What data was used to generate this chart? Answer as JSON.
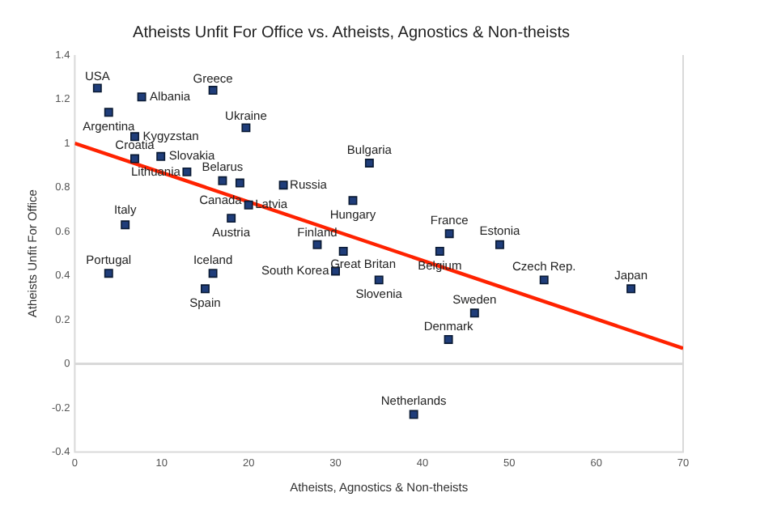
{
  "chart_data": {
    "type": "scatter",
    "title": "Atheists Unfit For Office vs. Atheists, Agnostics & Non-theists",
    "xlabel": "Atheists, Agnostics & Non-theists",
    "ylabel": "Atheists Unfit For Office",
    "xlim": [
      0,
      70
    ],
    "xticks": [
      0,
      10,
      20,
      30,
      40,
      50,
      60,
      70
    ],
    "ylim": [
      -0.4,
      1.4
    ],
    "yticks": [
      -0.4,
      -0.2,
      0,
      0.2,
      0.4,
      0.6,
      0.8,
      1,
      1.2,
      1.4
    ],
    "grid": false,
    "legend": false,
    "marker": "square",
    "series": [
      {
        "color": "#1f3d7a",
        "x": [
          2.6,
          15.9,
          7.7,
          3.9,
          19.7,
          6.9,
          6.9,
          9.9,
          12.9,
          17,
          19,
          20,
          24,
          33.9,
          32,
          18,
          5.8,
          27.9,
          30.9,
          43.1,
          48.9,
          42,
          30,
          35,
          54,
          64,
          46,
          43,
          3.9,
          15.9,
          15,
          39
        ],
        "values": [
          1.25,
          1.24,
          1.21,
          1.14,
          1.07,
          1.03,
          0.93,
          0.94,
          0.87,
          0.83,
          0.82,
          0.72,
          0.81,
          0.91,
          0.74,
          0.66,
          0.63,
          0.54,
          0.51,
          0.59,
          0.54,
          0.51,
          0.42,
          0.38,
          0.38,
          0.34,
          0.23,
          0.11,
          0.41,
          0.41,
          0.34,
          -0.23
        ]
      },
      {
        "type": "line",
        "color": "#ff2200",
        "x": [
          0,
          70
        ],
        "values": [
          1.0,
          0.07
        ],
        "marker": "none"
      }
    ],
    "ref_lines": [
      {
        "axis": "y",
        "value": 0,
        "color": "#d9d9d9"
      }
    ],
    "annotations": [
      {
        "text": "USA",
        "x": 2.6,
        "y": 1.25
      },
      {
        "text": "Greece",
        "x": 15.9,
        "y": 1.24
      },
      {
        "text": "Albania",
        "x": 7.7,
        "y": 1.21
      },
      {
        "text": "Argentina",
        "x": 3.9,
        "y": 1.14
      },
      {
        "text": "Ukraine",
        "x": 19.7,
        "y": 1.07
      },
      {
        "text": "Kygyzstan",
        "x": 6.9,
        "y": 1.03
      },
      {
        "text": "Croatia",
        "x": 6.9,
        "y": 0.93
      },
      {
        "text": "Slovakia",
        "x": 9.9,
        "y": 0.94
      },
      {
        "text": "Lithuania",
        "x": 12.9,
        "y": 0.87
      },
      {
        "text": "Belarus",
        "x": 17,
        "y": 0.83
      },
      {
        "text": "Canada",
        "x": 19,
        "y": 0.82
      },
      {
        "text": "Latvia",
        "x": 20,
        "y": 0.72
      },
      {
        "text": "Russia",
        "x": 24,
        "y": 0.81
      },
      {
        "text": "Bulgaria",
        "x": 33.9,
        "y": 0.91
      },
      {
        "text": "Hungary",
        "x": 32,
        "y": 0.74
      },
      {
        "text": "Austria",
        "x": 18,
        "y": 0.66
      },
      {
        "text": "Italy",
        "x": 5.8,
        "y": 0.63
      },
      {
        "text": "Finland",
        "x": 27.9,
        "y": 0.54
      },
      {
        "text": "Great Britan",
        "x": 30.9,
        "y": 0.51
      },
      {
        "text": "France",
        "x": 43.1,
        "y": 0.59
      },
      {
        "text": "Estonia",
        "x": 48.9,
        "y": 0.54
      },
      {
        "text": "Belgium",
        "x": 42,
        "y": 0.51
      },
      {
        "text": "South Korea",
        "x": 30,
        "y": 0.42
      },
      {
        "text": "Slovenia",
        "x": 35,
        "y": 0.38
      },
      {
        "text": "Czech Rep.",
        "x": 54,
        "y": 0.38
      },
      {
        "text": "Japan",
        "x": 64,
        "y": 0.34
      },
      {
        "text": "Sweden",
        "x": 46,
        "y": 0.23
      },
      {
        "text": "Denmark",
        "x": 43,
        "y": 0.11
      },
      {
        "text": "Portugal",
        "x": 3.9,
        "y": 0.41
      },
      {
        "text": "Iceland",
        "x": 15.9,
        "y": 0.41
      },
      {
        "text": "Spain",
        "x": 15,
        "y": 0.34
      },
      {
        "text": "Netherlands",
        "x": 39,
        "y": -0.23
      }
    ]
  }
}
